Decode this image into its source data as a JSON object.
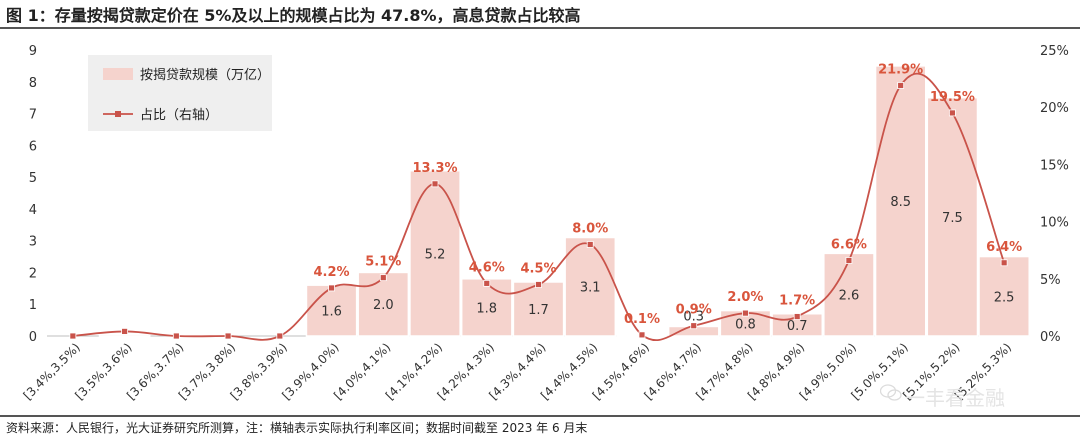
{
  "title": "图 1：存量按揭贷款定价在 5%及以上的规模占比为 47.8%，高息贷款占比较高",
  "source": "资料来源：人民银行，光大证券研究所测算，注：横轴表示实际执行利率区间；数据时间截至 2023 年 6 月末",
  "watermark": "一丰看金融",
  "colors": {
    "bar": "#f5d3cd",
    "bar_edge": "#ffffff",
    "line": "#c9534a",
    "marker": "#c9534a",
    "label_red": "#d9553c",
    "legend_bg": "#efefef"
  },
  "chart_data": {
    "type": "bar",
    "categories": [
      "[3.4%,3.5%)",
      "[3.5%,3.6%)",
      "[3.6%,3.7%)",
      "[3.7%,3.8%)",
      "[3.8%,3.9%)",
      "[3.9%,4.0%)",
      "[4.0%,4.1%)",
      "[4.1%,4.2%)",
      "[4.2%,4.3%)",
      "[4.3%,4.4%)",
      "[4.4%,4.5%)",
      "[4.5%,4.6%)",
      "[4.6%,4.7%)",
      "[4.7%,4.8%)",
      "[4.8%,4.9%)",
      "[4.9%,5.0%)",
      "[5.0%,5.1%)",
      "[5.1%,5.2%)",
      "[5.2%,5.3%)"
    ],
    "series": [
      {
        "name": "按揭贷款规模（万亿）",
        "type": "bar",
        "axis": "left",
        "values": [
          0,
          0.05,
          0,
          0,
          0,
          1.6,
          2.0,
          5.2,
          1.8,
          1.7,
          3.1,
          0.02,
          0.3,
          0.8,
          0.7,
          2.6,
          8.5,
          7.5,
          2.5
        ],
        "labels": [
          "",
          "",
          "",
          "",
          "",
          "1.6",
          "2.0",
          "5.2",
          "1.8",
          "1.7",
          "3.1",
          "",
          "0.3",
          "0.8",
          "0.7",
          "2.6",
          "8.5",
          "7.5",
          "2.5"
        ]
      },
      {
        "name": "占比（右轴）",
        "type": "line",
        "axis": "right",
        "values": [
          0,
          0.4,
          0,
          0,
          0,
          4.2,
          5.1,
          13.3,
          4.6,
          4.5,
          8.0,
          0.1,
          0.9,
          2.0,
          1.7,
          6.6,
          21.9,
          19.5,
          6.4
        ],
        "labels": [
          "",
          "",
          "",
          "",
          "",
          "4.2%",
          "5.1%",
          "13.3%",
          "4.6%",
          "4.5%",
          "8.0%",
          "0.1%",
          "0.9%",
          "2.0%",
          "1.7%",
          "6.6%",
          "21.9%",
          "19.5%",
          "6.4%"
        ]
      }
    ],
    "y_left": {
      "ylim": [
        0,
        9
      ],
      "ticks": [
        "0",
        "1",
        "2",
        "3",
        "4",
        "5",
        "6",
        "7",
        "8",
        "9"
      ]
    },
    "y_right": {
      "ylim": [
        0,
        25
      ],
      "ticks": [
        "0%",
        "5%",
        "10%",
        "15%",
        "20%",
        "25%"
      ]
    },
    "legend": {
      "placement": "top-left",
      "items": [
        "按揭贷款规模（万亿）",
        "占比（右轴）"
      ]
    },
    "grid": false
  }
}
